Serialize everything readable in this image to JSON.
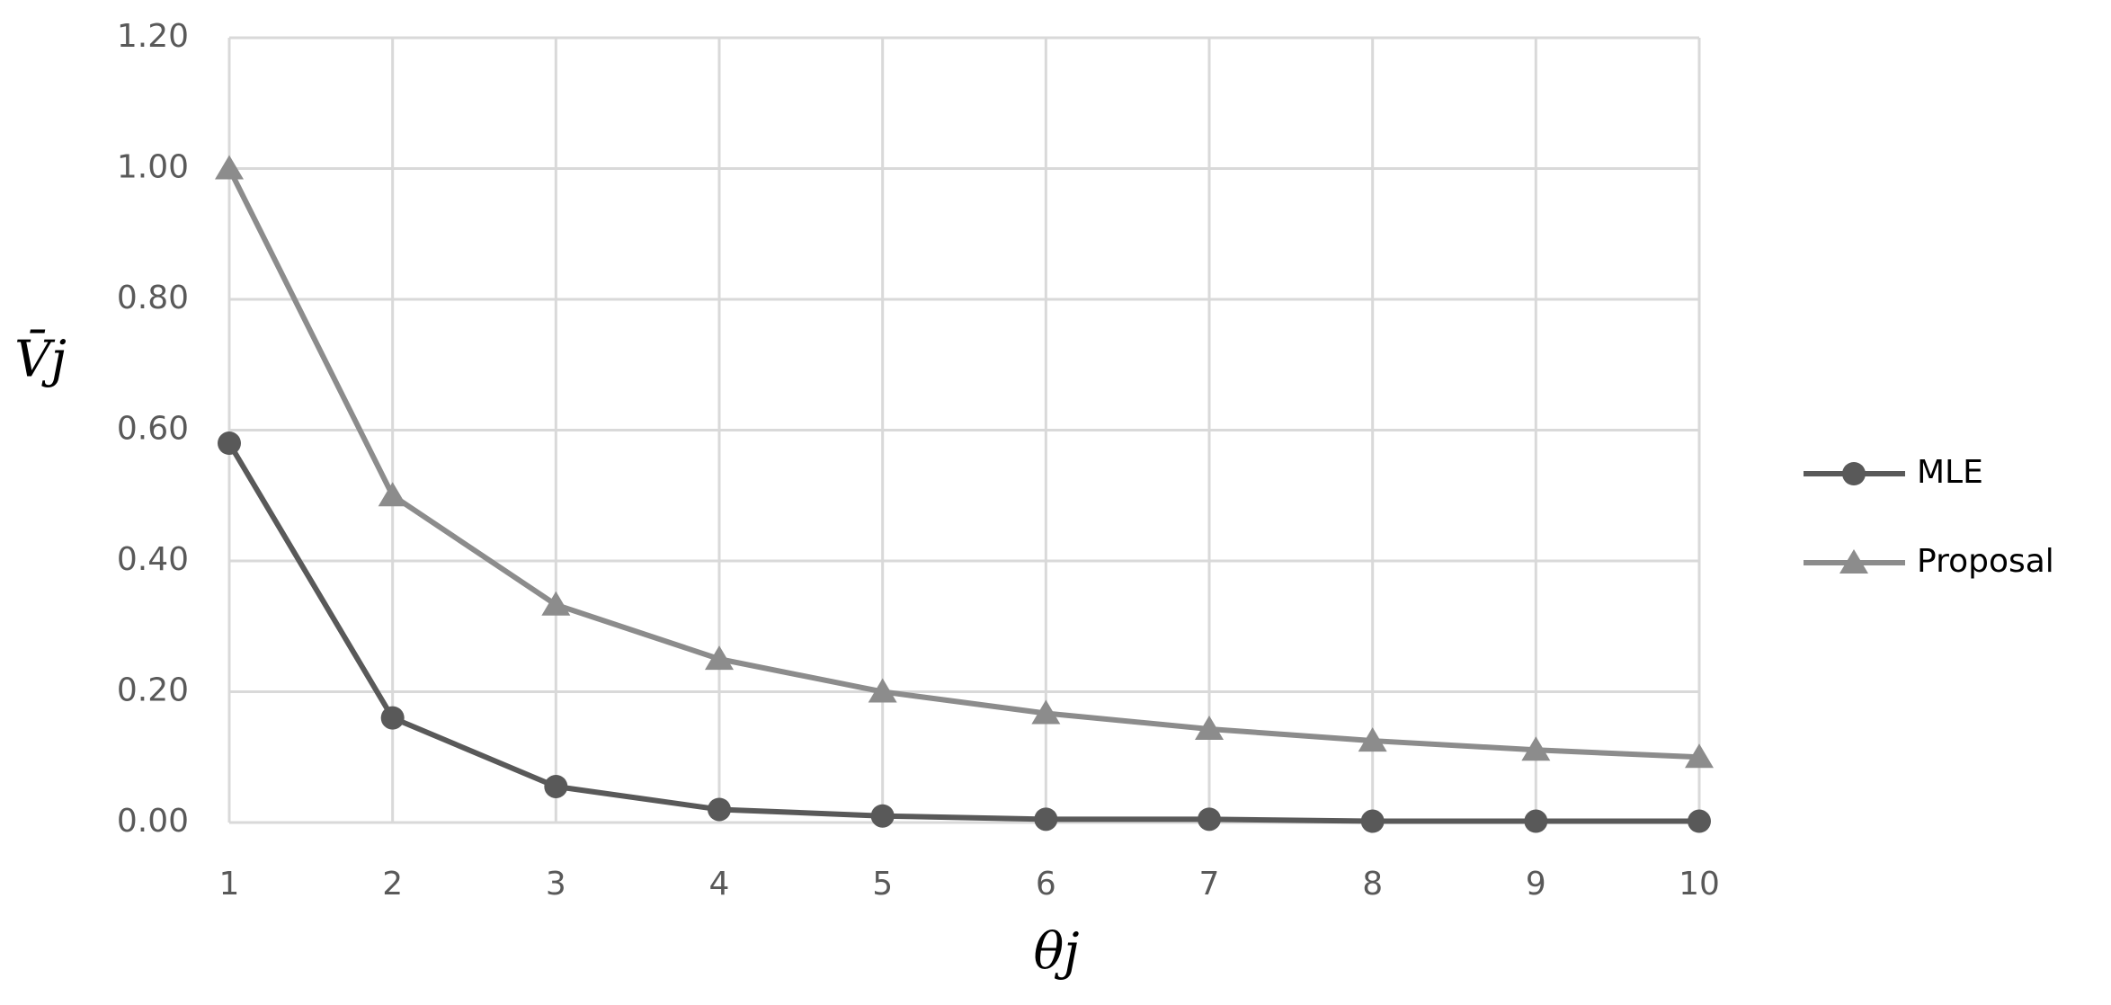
{
  "chart_data": {
    "type": "line",
    "x_label": "θj",
    "y_label": "V̄j",
    "x": [
      1,
      2,
      3,
      4,
      5,
      6,
      7,
      8,
      9,
      10
    ],
    "series": [
      {
        "name": "MLE",
        "color": "#595959",
        "marker": "circle",
        "values": [
          0.58,
          0.16,
          0.055,
          0.02,
          0.01,
          0.005,
          0.005,
          0.002,
          0.002,
          0.002
        ]
      },
      {
        "name": "Proposal",
        "color": "#8c8c8c",
        "marker": "triangle",
        "values": [
          1.0,
          0.5,
          0.333,
          0.25,
          0.2,
          0.167,
          0.143,
          0.125,
          0.111,
          0.1
        ]
      }
    ],
    "xlim": [
      1,
      10
    ],
    "xticks": [
      1,
      2,
      3,
      4,
      5,
      6,
      7,
      8,
      9,
      10
    ],
    "ylim": [
      0,
      1.2
    ],
    "yticks": [
      {
        "value": 0,
        "label": "0.00"
      },
      {
        "value": 0.2,
        "label": "0.20"
      },
      {
        "value": 0.4,
        "label": "0.40"
      },
      {
        "value": 0.6,
        "label": "0.60"
      },
      {
        "value": 0.8,
        "label": "0.80"
      },
      {
        "value": 1.0,
        "label": "1.00"
      },
      {
        "value": 1.2,
        "label": "1.20"
      }
    ],
    "grid": true,
    "legend": "right"
  }
}
